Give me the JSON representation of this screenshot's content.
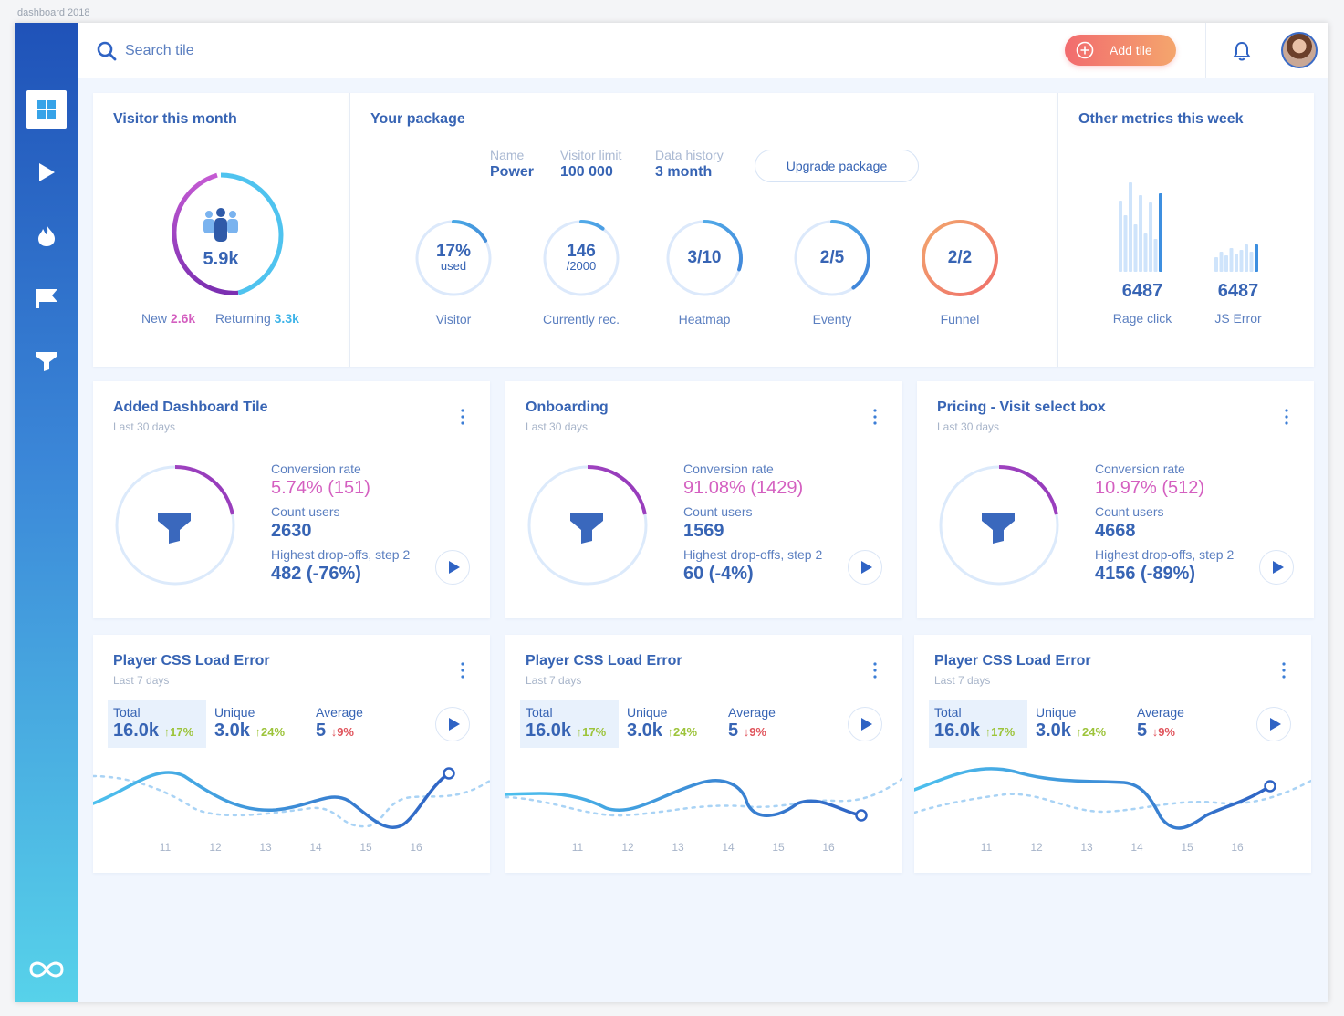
{
  "window_title": "dashboard 2018",
  "search": {
    "placeholder": "Search tile"
  },
  "header": {
    "add_tile_label": "Add tile"
  },
  "visitor_card": {
    "title": "Visitor this month",
    "total": "5.9k",
    "new_label": "New",
    "new_value": "2.6k",
    "returning_label": "Returning",
    "returning_value": "3.3k"
  },
  "package_card": {
    "title": "Your package",
    "info": [
      {
        "key": "Name",
        "value": "Power"
      },
      {
        "key": "Visitor limit",
        "value": "100 000"
      },
      {
        "key": "Data history",
        "value": "3 month"
      }
    ],
    "upgrade_label": "Upgrade package",
    "rings": [
      {
        "main": "17%",
        "sub": "used",
        "label": "Visitor",
        "fraction": 0.17
      },
      {
        "main": "146",
        "sub": "/2000",
        "label": "Currently rec.",
        "fraction": 0.073
      },
      {
        "main": "3/10",
        "sub": "",
        "label": "Heatmap",
        "fraction": 0.3
      },
      {
        "main": "2/5",
        "sub": "",
        "label": "Eventy",
        "fraction": 0.4
      },
      {
        "main": "2/2",
        "sub": "",
        "label": "Funnel",
        "fraction": 1.0
      }
    ]
  },
  "metrics_card": {
    "title": "Other metrics this week",
    "items": [
      {
        "value": "6487",
        "label": "Rage click"
      },
      {
        "value": "6487",
        "label": "JS Error"
      }
    ]
  },
  "funnel_cards": [
    {
      "title": "Added Dashboard Tile",
      "period": "Last 30 days",
      "conv_label": "Conversion rate",
      "conv_value": "5.74% (151)",
      "count_label": "Count users",
      "count_value": "2630",
      "drop_label": "Highest drop-offs, step 2",
      "drop_value": "482 (-76%)"
    },
    {
      "title": "Onboarding",
      "period": "Last 30 days",
      "conv_label": "Conversion rate",
      "conv_value": "91.08% (1429)",
      "count_label": "Count users",
      "count_value": "1569",
      "drop_label": "Highest drop-offs, step 2",
      "drop_value": "60 (-4%)"
    },
    {
      "title": "Pricing - Visit select box",
      "period": "Last 30 days",
      "conv_label": "Conversion rate",
      "conv_value": "10.97% (512)",
      "count_label": "Count users",
      "count_value": "4668",
      "drop_label": "Highest drop-offs, step 2",
      "drop_value": "4156 (-89%)"
    }
  ],
  "error_cards": [
    {
      "title": "Player CSS Load Error",
      "period": "Last 7 days",
      "total_label": "Total",
      "total_value": "16.0k",
      "total_delta": "↑17%",
      "unique_label": "Unique",
      "unique_value": "3.0k",
      "unique_delta": "↑24%",
      "avg_label": "Average",
      "avg_value": "5",
      "avg_delta": "↓9%"
    },
    {
      "title": "Player CSS Load Error",
      "period": "Last 7 days",
      "total_label": "Total",
      "total_value": "16.0k",
      "total_delta": "↑17%",
      "unique_label": "Unique",
      "unique_value": "3.0k",
      "unique_delta": "↑24%",
      "avg_label": "Average",
      "avg_value": "5",
      "avg_delta": "↓9%"
    },
    {
      "title": "Player CSS Load Error",
      "period": "Last 7 days",
      "total_label": "Total",
      "total_value": "16.0k",
      "total_delta": "↑17%",
      "unique_label": "Unique",
      "unique_value": "3.0k",
      "unique_delta": "↑24%",
      "avg_label": "Average",
      "avg_value": "5",
      "avg_delta": "↓9%"
    }
  ],
  "chart_data": [
    {
      "type": "line",
      "x": [
        "11",
        "12",
        "13",
        "14",
        "15",
        "16"
      ],
      "series": []
    },
    {
      "type": "line",
      "x": [
        "11",
        "12",
        "13",
        "14",
        "15",
        "16"
      ],
      "series": []
    },
    {
      "type": "line",
      "x": [
        "11",
        "12",
        "13",
        "14",
        "15",
        "16"
      ],
      "series": []
    }
  ],
  "colors": {
    "primary": "#3764b4",
    "accent_pink": "#d45fc0",
    "accent_cyan": "#3fb4e8",
    "up": "#9dc43b",
    "down": "#e0545c",
    "add_button_start": "#f26b6e",
    "add_button_end": "#f4a66d"
  },
  "icons": {
    "nav": [
      "dashboard-icon",
      "play-icon",
      "fire-icon",
      "flag-icon",
      "funnel-icon"
    ],
    "logo": "infinity-icon"
  }
}
